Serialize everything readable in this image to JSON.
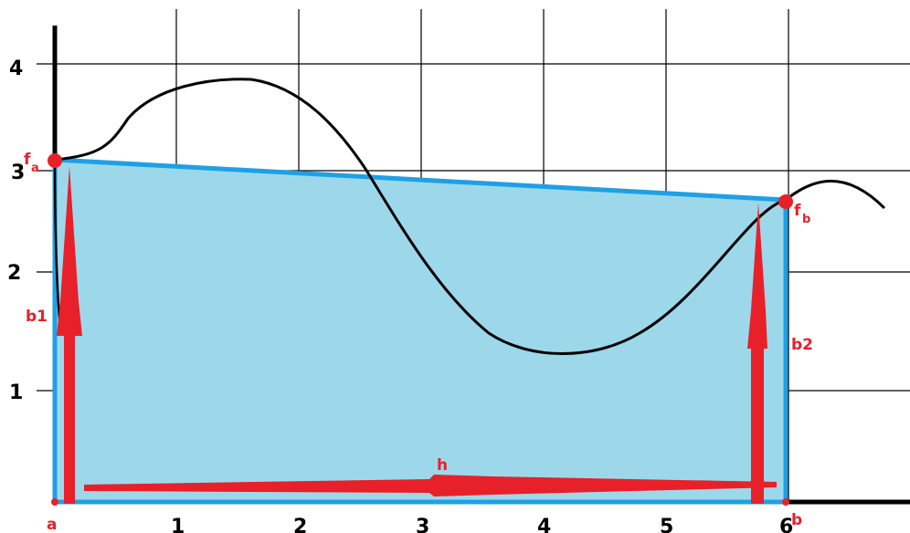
{
  "x_ticks": [
    "1",
    "2",
    "3",
    "4",
    "5",
    "6"
  ],
  "y_ticks": [
    "1",
    "2",
    "3",
    "4"
  ],
  "labels": {
    "a": "a",
    "b": "b",
    "h": "h",
    "b1": "b1",
    "b2": "b2",
    "f": "f",
    "f_a_sub": "a",
    "f_b_sub": "b"
  },
  "colors": {
    "trapezoid_fill": "#9dd8ea",
    "trapezoid_stroke": "#1ea0e6",
    "annotation": "#e8202a",
    "curve": "#000000",
    "grid": "#000000"
  }
}
